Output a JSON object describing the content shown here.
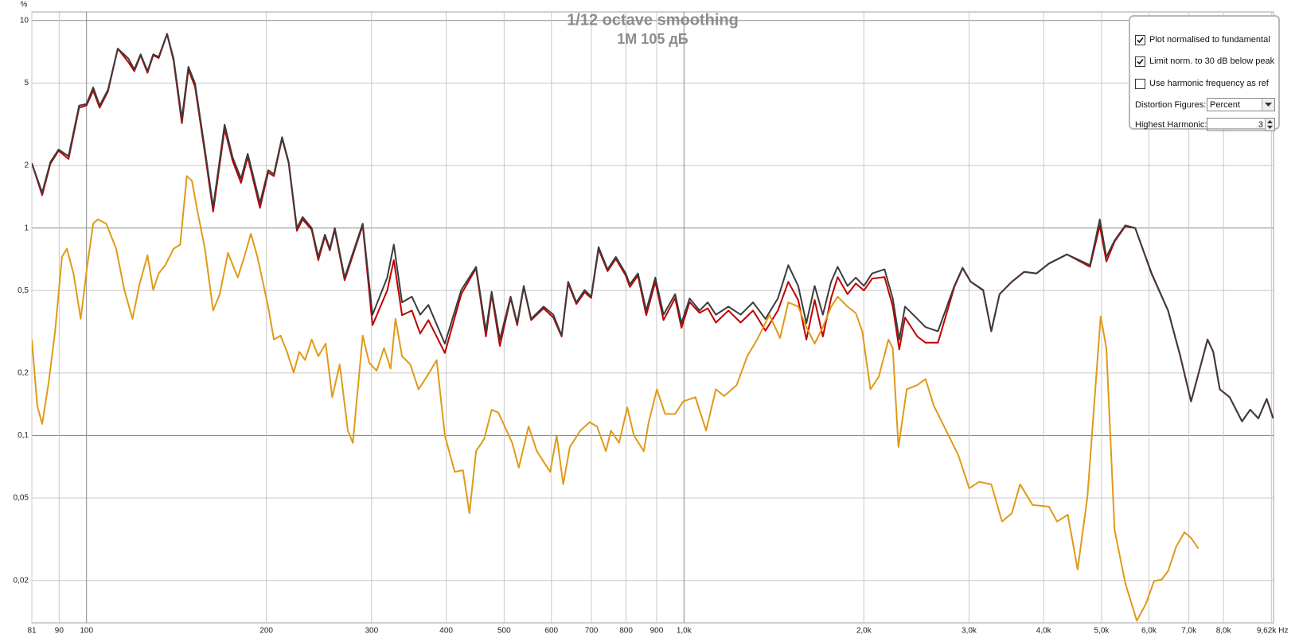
{
  "chart_data": {
    "type": "line",
    "title": "1/12 octave smoothing",
    "subtitle": "1M 105 дБ",
    "y_unit": "%",
    "x_unit": "Hz",
    "xscale": "log",
    "yscale": "log",
    "grid": true,
    "xlim": [
      81,
      9700
    ],
    "ylim": [
      0.0125,
      11
    ],
    "xticks": [
      81,
      90,
      100,
      200,
      300,
      400,
      500,
      600,
      700,
      800,
      900,
      {
        "value": 1000,
        "label": "1,0k"
      },
      {
        "value": 2000,
        "label": "2,0k"
      },
      {
        "value": 3000,
        "label": "3,0k"
      },
      {
        "value": 4000,
        "label": "4,0k"
      },
      {
        "value": 5000,
        "label": "5,0k"
      },
      {
        "value": 6000,
        "label": "6,0k"
      },
      {
        "value": 7000,
        "label": "7,0k"
      },
      {
        "value": 8000,
        "label": "8,0k"
      },
      {
        "value": 9620,
        "label": "9,62k"
      }
    ],
    "yticks": [
      {
        "value": 0.02,
        "label": "0,02"
      },
      {
        "value": 0.05,
        "label": "0,05"
      },
      {
        "value": 0.1,
        "label": "0,1"
      },
      {
        "value": 0.2,
        "label": "0,2"
      },
      {
        "value": 0.5,
        "label": "0,5"
      },
      1,
      2,
      5,
      10
    ],
    "x": [
      81,
      84.3,
      87.0,
      89.8,
      93.3,
      97.2,
      100,
      102.6,
      105.2,
      108.6,
      112.8,
      117.5,
      120.2,
      123.2,
      126.5,
      129.3,
      132.1,
      136.4,
      139.9,
      144.4,
      148.1,
      151.9,
      157.8,
      162.9,
      170.3,
      175.7,
      181.4,
      186.1,
      195.1,
      201.4,
      205.9,
      212.5,
      218.0,
      225.0,
      230.0,
      238.2,
      244.3,
      250.6,
      255.4,
      260.3,
      270.4,
      289.9,
      301.1,
      318.7,
      326.9,
      337.4,
      350.5,
      361.8,
      373.4,
      397.9,
      423.9,
      448.7,
      466.1,
      476.5,
      491.9,
      512.6,
      525.8,
      539.3,
      554.9,
      582.0,
      604.5,
      624.0,
      640.0,
      660.5,
      681.8,
      699.3,
      719.5,
      745.0,
      769.0,
      798.8,
      811.6,
      837.6,
      864.6,
      895.3,
      924.1,
      966.5,
      990.6,
      1022,
      1062,
      1096,
      1131,
      1187,
      1244,
      1305,
      1369,
      1436,
      1495,
      1553,
      1603,
      1655,
      1708,
      1763,
      1808,
      1878,
      1939,
      2001,
      2065,
      2166,
      2236,
      2293,
      2344,
      2458,
      2537,
      2661,
      2835,
      2926,
      3020,
      3168,
      3269,
      3375,
      3538,
      3711,
      3892,
      4081,
      4375,
      4781,
      4966,
      5093,
      5257,
      5479,
      5691,
      6064,
      6461,
      6772,
      7060,
      7332,
      7521,
      7689,
      7886,
      8191,
      8590,
      8866,
      9152,
      9446,
      9688
    ],
    "series": [
      {
        "color": "#c00000",
        "values": [
          2.05,
          1.44,
          2.04,
          2.36,
          2.15,
          3.8,
          3.9,
          4.6,
          3.8,
          4.55,
          7.32,
          6.3,
          5.7,
          6.8,
          5.6,
          6.8,
          6.6,
          8.6,
          6.4,
          3.2,
          5.8,
          4.8,
          2.3,
          1.2,
          3.0,
          2.1,
          1.65,
          2.2,
          1.25,
          1.85,
          1.78,
          2.7,
          2.05,
          0.97,
          1.1,
          0.98,
          0.7,
          0.91,
          0.78,
          0.98,
          0.56,
          1.03,
          0.34,
          0.5,
          0.7,
          0.38,
          0.4,
          0.31,
          0.36,
          0.25,
          0.48,
          0.64,
          0.3,
          0.48,
          0.27,
          0.46,
          0.34,
          0.52,
          0.36,
          0.41,
          0.37,
          0.3,
          0.54,
          0.43,
          0.49,
          0.46,
          0.79,
          0.62,
          0.71,
          0.59,
          0.52,
          0.59,
          0.38,
          0.55,
          0.36,
          0.46,
          0.33,
          0.44,
          0.39,
          0.41,
          0.35,
          0.4,
          0.35,
          0.4,
          0.32,
          0.4,
          0.55,
          0.45,
          0.29,
          0.45,
          0.3,
          0.46,
          0.58,
          0.48,
          0.54,
          0.5,
          0.57,
          0.58,
          0.42,
          0.26,
          0.37,
          0.3,
          0.28,
          0.28,
          0.52,
          0.64,
          0.55,
          0.5,
          0.318,
          0.48,
          0.55,
          0.615,
          0.604,
          0.674,
          0.746,
          0.65,
          1.03,
          0.69,
          0.86,
          1.02,
          1.0,
          0.6,
          0.4,
          0.241,
          0.146,
          0.22,
          0.29,
          0.253,
          0.167,
          0.153,
          0.117,
          0.133,
          0.121,
          0.15,
          0.121
        ]
      },
      {
        "color": "#3c3c3c",
        "values": [
          2.05,
          1.48,
          2.08,
          2.39,
          2.22,
          3.89,
          3.96,
          4.76,
          3.89,
          4.63,
          7.32,
          6.56,
          5.82,
          6.87,
          5.71,
          6.87,
          6.68,
          8.63,
          6.56,
          3.36,
          5.98,
          4.98,
          2.39,
          1.26,
          3.15,
          2.18,
          1.73,
          2.28,
          1.32,
          1.9,
          1.82,
          2.74,
          2.08,
          1.0,
          1.13,
          1.0,
          0.726,
          0.929,
          0.795,
          1.0,
          0.577,
          1.05,
          0.382,
          0.577,
          0.832,
          0.438,
          0.467,
          0.382,
          0.426,
          0.277,
          0.503,
          0.65,
          0.318,
          0.493,
          0.29,
          0.467,
          0.348,
          0.526,
          0.365,
          0.418,
          0.382,
          0.303,
          0.551,
          0.438,
          0.503,
          0.467,
          0.81,
          0.632,
          0.726,
          0.604,
          0.536,
          0.604,
          0.4,
          0.577,
          0.382,
          0.48,
          0.348,
          0.458,
          0.4,
          0.438,
          0.382,
          0.418,
          0.382,
          0.438,
          0.365,
          0.458,
          0.662,
          0.526,
          0.348,
          0.526,
          0.382,
          0.551,
          0.65,
          0.526,
          0.577,
          0.526,
          0.604,
          0.632,
          0.458,
          0.29,
          0.418,
          0.365,
          0.333,
          0.318,
          0.526,
          0.644,
          0.551,
          0.503,
          0.318,
          0.48,
          0.551,
          0.615,
          0.604,
          0.674,
          0.746,
          0.662,
          1.1,
          0.726,
          0.871,
          1.03,
          1.0,
          0.604,
          0.4,
          0.241,
          0.146,
          0.22,
          0.29,
          0.253,
          0.167,
          0.153,
          0.117,
          0.133,
          0.121,
          0.15,
          0.121
        ]
      },
      {
        "color": "#e09a18",
        "x": [
          81,
          82.7,
          84.3,
          86.5,
          88.6,
          91.0,
          92.7,
          95.1,
          97.8,
          100.3,
          102.6,
          104.5,
          107.9,
          112.1,
          115.7,
          119.4,
          122.5,
          126.5,
          129.3,
          132.1,
          135.5,
          139.9,
          143.5,
          147.2,
          150.1,
          152.9,
          157.8,
          162.9,
          167.1,
          172.5,
          179.1,
          183.7,
          188.4,
          193.2,
          201.4,
          205.9,
          211.2,
          216.6,
          222.2,
          227.1,
          232.2,
          238.2,
          244.3,
          251.4,
          257.8,
          265.3,
          273.8,
          279.1,
          289.9,
          297.3,
          305.9,
          314.8,
          322.8,
          329.0,
          337.4,
          348.3,
          359.5,
          371.1,
          385.5,
          397.9,
          413.3,
          426.6,
          437.5,
          448.7,
          463.2,
          476.5,
          488.8,
          501.3,
          515.8,
          529.1,
          549.5,
          567.3,
          597.0,
          612.3,
          627.9,
          644.0,
          671.0,
          694.9,
          715.0,
          740.4,
          754.6,
          778.8,
          803.8,
          824.5,
          856.4,
          872.9,
          901.0,
          929.9,
          966.5,
          996.8,
          1045,
          1089,
          1131,
          1168,
          1225,
          1276,
          1326,
          1390,
          1448,
          1495,
          1553,
          1603,
          1655,
          1708,
          1763,
          1808,
          1878,
          1939,
          1988,
          2052,
          2118,
          2200,
          2236,
          2286,
          2360,
          2458,
          2537,
          2619,
          2747,
          2880,
          3002,
          3118,
          3269,
          3407,
          3538,
          3652,
          3831,
          4081,
          4212,
          4389,
          4559,
          4735,
          4982,
          5093,
          5257,
          5479,
          5727,
          5929,
          6122,
          6299,
          6461,
          6668,
          6882,
          7060,
          7261
        ],
        "values": [
          0.29,
          0.139,
          0.1137,
          0.183,
          0.318,
          0.726,
          0.795,
          0.604,
          0.365,
          0.662,
          1.05,
          1.1,
          1.05,
          0.795,
          0.503,
          0.365,
          0.526,
          0.739,
          0.503,
          0.604,
          0.662,
          0.795,
          0.832,
          1.78,
          1.69,
          1.26,
          0.795,
          0.4,
          0.48,
          0.759,
          0.577,
          0.726,
          0.938,
          0.726,
          0.418,
          0.29,
          0.303,
          0.253,
          0.201,
          0.253,
          0.231,
          0.29,
          0.241,
          0.277,
          0.153,
          0.22,
          0.1057,
          0.0921,
          0.303,
          0.224,
          0.205,
          0.264,
          0.21,
          0.365,
          0.241,
          0.22,
          0.167,
          0.192,
          0.231,
          0.1,
          0.0668,
          0.068,
          0.0422,
          0.084,
          0.0964,
          0.133,
          0.129,
          0.1106,
          0.0921,
          0.07,
          0.1106,
          0.084,
          0.0668,
          0.1,
          0.0582,
          0.088,
          0.1057,
          0.1159,
          0.1106,
          0.084,
          0.1057,
          0.0921,
          0.1366,
          0.1,
          0.084,
          0.1159,
          0.167,
          0.127,
          0.127,
          0.146,
          0.153,
          0.1057,
          0.167,
          0.155,
          0.175,
          0.241,
          0.29,
          0.382,
          0.295,
          0.438,
          0.418,
          0.333,
          0.277,
          0.333,
          0.418,
          0.467,
          0.418,
          0.389,
          0.318,
          0.167,
          0.192,
          0.29,
          0.264,
          0.088,
          0.167,
          0.175,
          0.187,
          0.139,
          0.1057,
          0.0802,
          0.0556,
          0.0598,
          0.0582,
          0.0385,
          0.0422,
          0.0582,
          0.0463,
          0.0454,
          0.0385,
          0.0415,
          0.0226,
          0.0507,
          0.375,
          0.264,
          0.0351,
          0.0194,
          0.0128,
          0.0154,
          0.0199,
          0.0202,
          0.0222,
          0.0292,
          0.0342,
          0.0321,
          0.0285
        ]
      }
    ]
  },
  "panel": {
    "checkboxes": [
      {
        "label": "Plot normalised to fundamental",
        "checked": true
      },
      {
        "label": "Limit norm. to 30 dB below peak",
        "checked": true
      },
      {
        "label": "Use harmonic frequency as ref",
        "checked": false
      }
    ],
    "distortion_figures": {
      "label": "Distortion Figures:",
      "value": "Percent"
    },
    "highest_harmonic": {
      "label": "Highest Harmonic:",
      "value": 3
    }
  }
}
